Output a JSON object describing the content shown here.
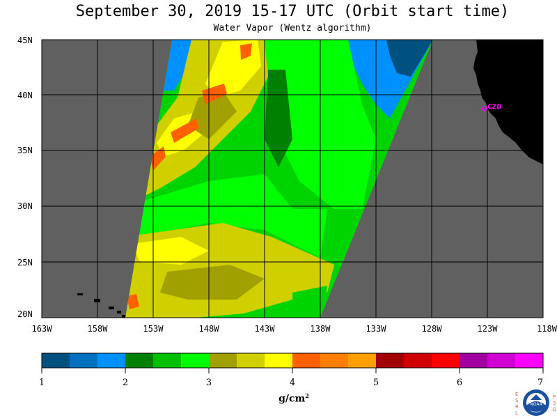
{
  "title": "September 30, 2019  15-17 UTC  (Orbit start time)",
  "subtitle": "Water Vapor (Wentz algorithm)",
  "map": {
    "lat_labels": [
      "45N",
      "40N",
      "35N",
      "30N",
      "25N",
      "20N"
    ],
    "lon_labels": [
      "163W",
      "158W",
      "153W",
      "148W",
      "143W",
      "138W",
      "133W",
      "128W",
      "123W",
      "118W"
    ],
    "station_label": "CZD",
    "colors": {
      "nodata": "#606060",
      "land": "#000000",
      "station": "#ff00ff"
    }
  },
  "colorbar": {
    "colors": [
      "#005080",
      "#0070c0",
      "#0090ff",
      "#008000",
      "#00c000",
      "#00ff00",
      "#a0a000",
      "#d0d000",
      "#ffff00",
      "#ff6000",
      "#ff8000",
      "#ffa000",
      "#a00000",
      "#d00000",
      "#ff0000",
      "#a000a0",
      "#d000d0",
      "#ff00ff"
    ],
    "tick_labels": [
      "1",
      "2",
      "3",
      "4",
      "5",
      "6",
      "7"
    ],
    "units": "g/cm",
    "units_sup": "2"
  },
  "logo": {
    "left_letters": [
      "E",
      "S",
      "R",
      "L"
    ],
    "right_letters": [
      "P",
      "S",
      "D"
    ],
    "name": "NOAA"
  }
}
